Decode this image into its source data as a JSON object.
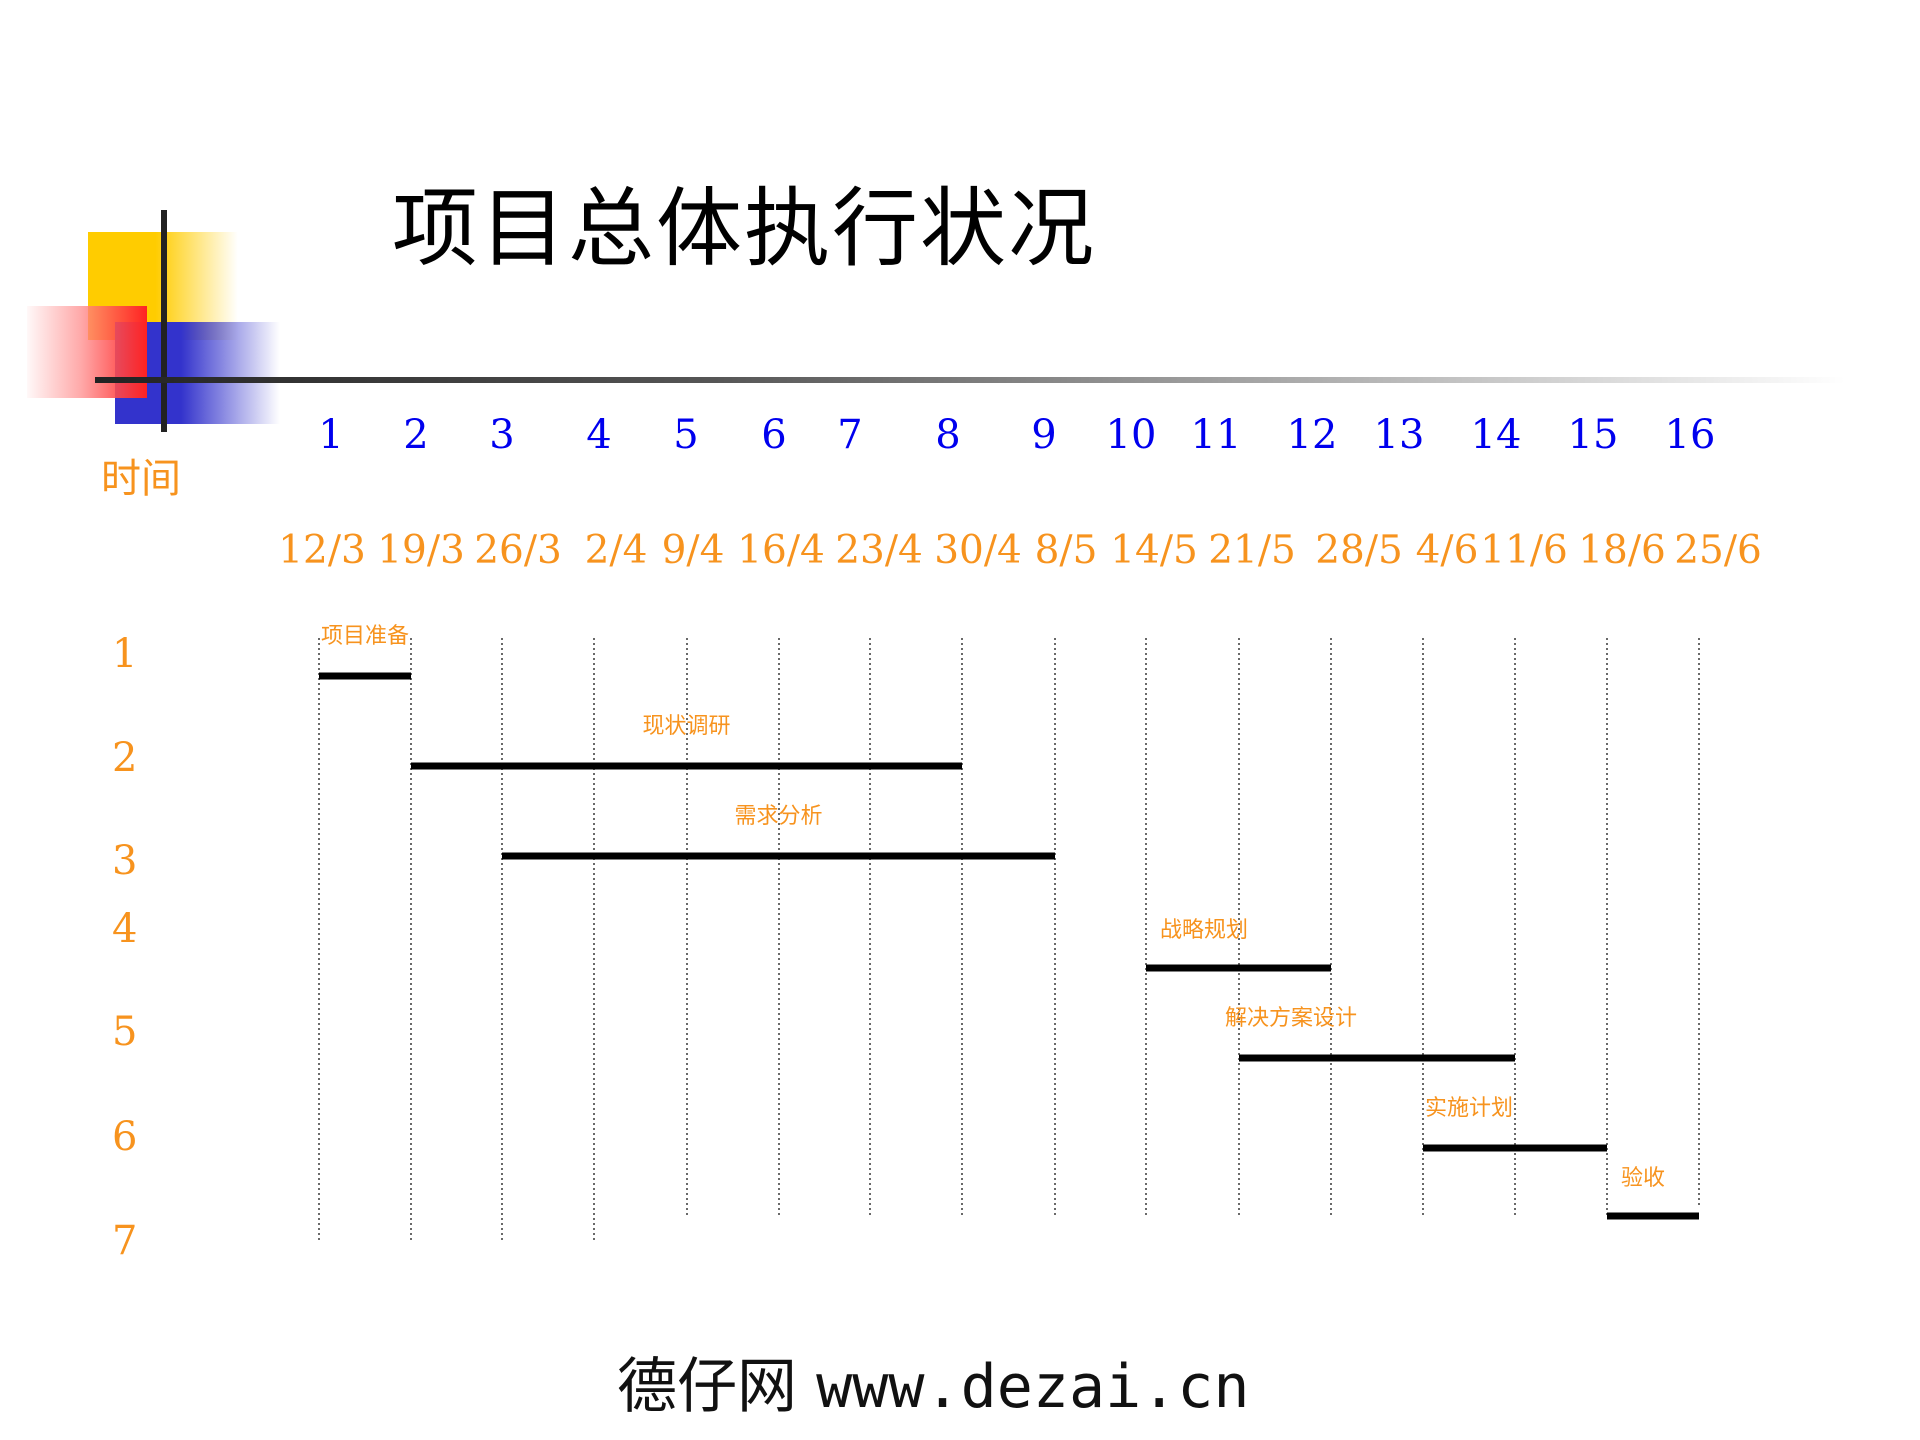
{
  "title": "项目总体执行状况",
  "time_label": "时间",
  "week_numbers": [
    "1",
    "2",
    "3",
    "4",
    "5",
    "6",
    "7",
    "8",
    "9",
    "10",
    "11",
    "12",
    "13",
    "14",
    "15",
    "16"
  ],
  "dates": [
    "12/3",
    "19/3",
    "26/3",
    "2/4",
    "9/4",
    "16/4",
    "23/4",
    "30/4",
    "8/5",
    "14/5",
    "21/5",
    "28/5",
    "4/6",
    "11/6",
    "18/6",
    "25/6"
  ],
  "row_numbers": [
    "1",
    "2",
    "3",
    "4",
    "5",
    "6",
    "7"
  ],
  "chart_data": {
    "type": "gantt",
    "title": "项目总体执行状况",
    "axis_label": "时间",
    "tasks": [
      {
        "row": 1,
        "label": "项目准备",
        "start_week": 1,
        "end_week": 2
      },
      {
        "row": 2,
        "label": "现状调研",
        "start_week": 2,
        "end_week": 8
      },
      {
        "row": 3,
        "label": "需求分析",
        "start_week": 3,
        "end_week": 9
      },
      {
        "row": 4,
        "label": "战略规划",
        "start_week": 10,
        "end_week": 12
      },
      {
        "row": 5,
        "label": "解决方案设计",
        "start_week": 11,
        "end_week": 14
      },
      {
        "row": 6,
        "label": "实施计划",
        "start_week": 13,
        "end_week": 15
      },
      {
        "row": 7,
        "label": "验收",
        "start_week": 15,
        "end_week": 16
      }
    ],
    "grid": "dotted vertical lines at each week"
  },
  "footer": {
    "brand": "德仔网",
    "url": "www.dezai.cn"
  }
}
